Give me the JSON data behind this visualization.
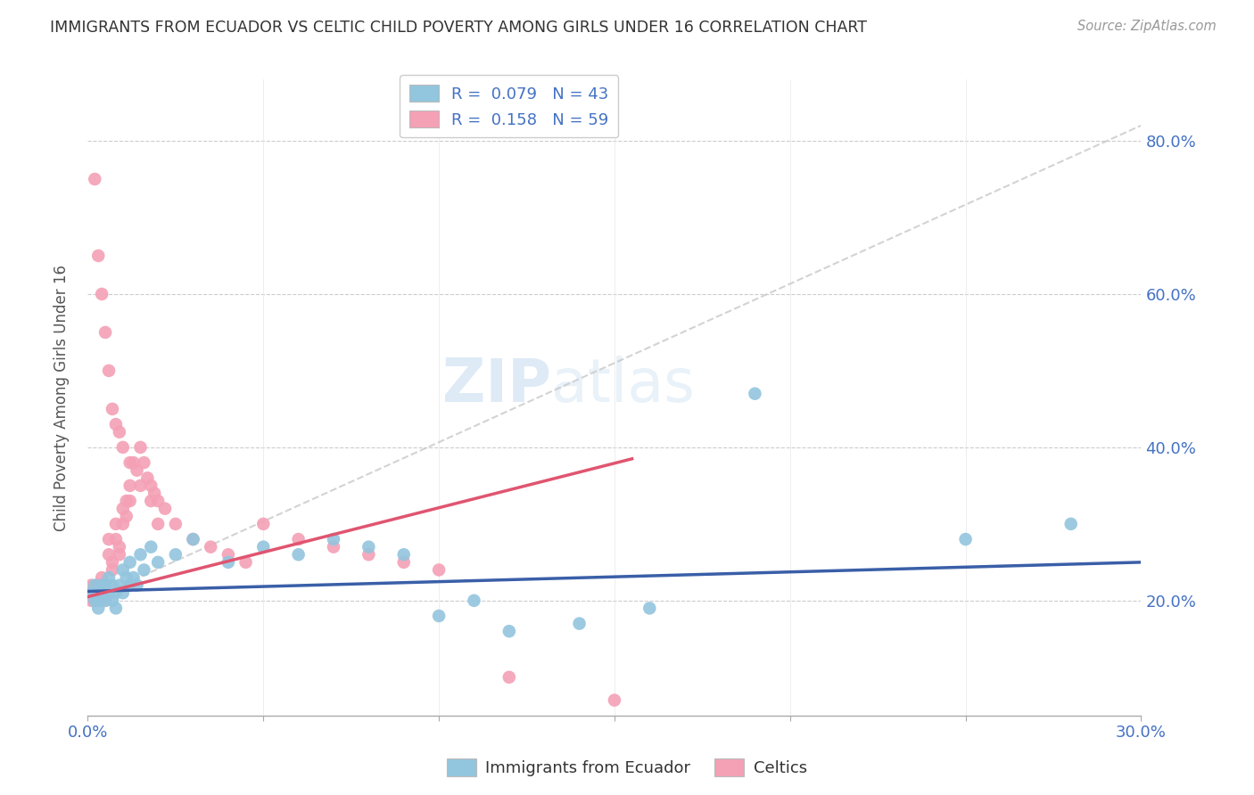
{
  "title": "IMMIGRANTS FROM ECUADOR VS CELTIC CHILD POVERTY AMONG GIRLS UNDER 16 CORRELATION CHART",
  "source": "Source: ZipAtlas.com",
  "ylabel": "Child Poverty Among Girls Under 16",
  "xlim": [
    0.0,
    0.3
  ],
  "ylim": [
    0.05,
    0.88
  ],
  "xticks": [
    0.0,
    0.05,
    0.1,
    0.15,
    0.2,
    0.25,
    0.3
  ],
  "yticks": [
    0.2,
    0.4,
    0.6,
    0.8
  ],
  "legend_r1": "R = 0.079",
  "legend_n1": "N = 43",
  "legend_r2": "R = 0.158",
  "legend_n2": "N = 59",
  "color_ecuador": "#92C5DE",
  "color_celtics": "#F4A0B5",
  "color_trend_ecuador": "#3A5FA8",
  "color_trend_celtics": "#E05570",
  "color_trend_gray": "#C8C8C8",
  "watermark_zip": "ZIP",
  "watermark_atlas": "atlas",
  "ecuador_x": [
    0.001,
    0.002,
    0.002,
    0.003,
    0.003,
    0.004,
    0.004,
    0.005,
    0.005,
    0.006,
    0.006,
    0.007,
    0.007,
    0.008,
    0.008,
    0.009,
    0.01,
    0.01,
    0.011,
    0.012,
    0.012,
    0.013,
    0.014,
    0.015,
    0.016,
    0.018,
    0.02,
    0.025,
    0.03,
    0.04,
    0.05,
    0.06,
    0.07,
    0.08,
    0.09,
    0.1,
    0.12,
    0.14,
    0.16,
    0.19,
    0.25,
    0.28,
    0.11
  ],
  "ecuador_y": [
    0.21,
    0.2,
    0.22,
    0.2,
    0.19,
    0.21,
    0.22,
    0.2,
    0.22,
    0.21,
    0.23,
    0.22,
    0.2,
    0.21,
    0.19,
    0.22,
    0.24,
    0.21,
    0.23,
    0.25,
    0.22,
    0.23,
    0.22,
    0.26,
    0.24,
    0.27,
    0.25,
    0.26,
    0.28,
    0.25,
    0.27,
    0.26,
    0.28,
    0.27,
    0.26,
    0.18,
    0.16,
    0.17,
    0.19,
    0.47,
    0.28,
    0.3,
    0.2
  ],
  "celtics_x": [
    0.001,
    0.001,
    0.002,
    0.002,
    0.003,
    0.003,
    0.004,
    0.004,
    0.005,
    0.005,
    0.006,
    0.006,
    0.007,
    0.007,
    0.008,
    0.008,
    0.009,
    0.009,
    0.01,
    0.01,
    0.011,
    0.011,
    0.012,
    0.012,
    0.013,
    0.014,
    0.015,
    0.016,
    0.017,
    0.018,
    0.019,
    0.02,
    0.022,
    0.025,
    0.03,
    0.035,
    0.04,
    0.045,
    0.05,
    0.06,
    0.07,
    0.08,
    0.09,
    0.1,
    0.12,
    0.15,
    0.002,
    0.003,
    0.004,
    0.005,
    0.006,
    0.007,
    0.008,
    0.009,
    0.01,
    0.012,
    0.015,
    0.018,
    0.02
  ],
  "celtics_y": [
    0.22,
    0.2,
    0.21,
    0.2,
    0.22,
    0.2,
    0.21,
    0.23,
    0.22,
    0.2,
    0.28,
    0.26,
    0.25,
    0.24,
    0.3,
    0.28,
    0.27,
    0.26,
    0.32,
    0.3,
    0.33,
    0.31,
    0.35,
    0.33,
    0.38,
    0.37,
    0.4,
    0.38,
    0.36,
    0.35,
    0.34,
    0.33,
    0.32,
    0.3,
    0.28,
    0.27,
    0.26,
    0.25,
    0.3,
    0.28,
    0.27,
    0.26,
    0.25,
    0.24,
    0.1,
    0.07,
    0.75,
    0.65,
    0.6,
    0.55,
    0.5,
    0.45,
    0.43,
    0.42,
    0.4,
    0.38,
    0.35,
    0.33,
    0.3
  ],
  "trend_ecuador_x0": 0.0,
  "trend_ecuador_y0": 0.212,
  "trend_ecuador_x1": 0.3,
  "trend_ecuador_y1": 0.25,
  "trend_celtics_x0": 0.0,
  "trend_celtics_y0": 0.205,
  "trend_celtics_x1": 0.155,
  "trend_celtics_y1": 0.385,
  "trend_gray_x0": 0.0,
  "trend_gray_y0": 0.2,
  "trend_gray_x1": 0.3,
  "trend_gray_y1": 0.82
}
